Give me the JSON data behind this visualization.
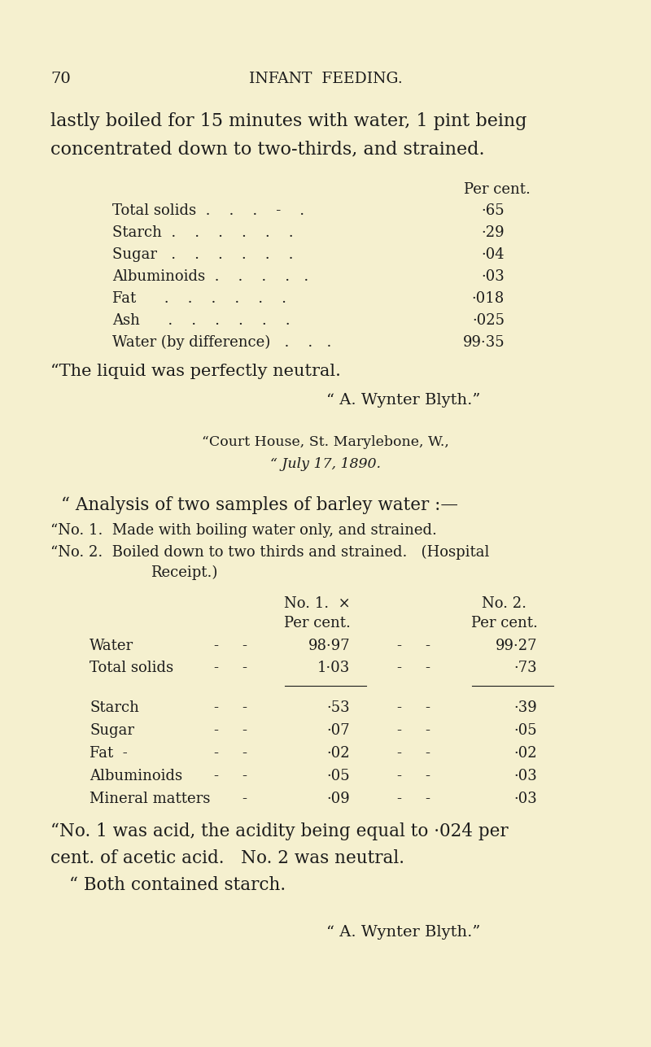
{
  "bg_color": "#f5f0cf",
  "text_color": "#1c1c1c",
  "page_number": "70",
  "header": "INFANT  FEEDING.",
  "intro_line1": "lastly boiled for 15 minutes with water, 1 pint being",
  "intro_line2": "concentrated down to two-thirds, and strained.",
  "per_cent_label": "Per cent.",
  "table1_rows": [
    [
      "Total solids  .    .    .    -    .",
      "·65"
    ],
    [
      "Starch  .    .    .    .    .    .",
      "·29"
    ],
    [
      "Sugar   .    .    .    .    .    .",
      "·04"
    ],
    [
      "Albuminoids  .    .    .    .   .",
      "·03"
    ],
    [
      "Fat      .    .    .    .    .    .",
      "·018"
    ],
    [
      "Ash      .    .    .    .    .    .",
      "·025"
    ],
    [
      "Water (by difference)   .    .   .",
      "99·35"
    ]
  ],
  "quote1": "“The liquid was perfectly neutral.",
  "attrib1": "“ A. Wynter Blyth.”",
  "court1": "“Court House, St. Marylebone, W.,",
  "court2": "“ July 17, 1890.",
  "analysis": "“ Analysis of two samples of barley water :—",
  "no1": "“No. 1.  Made with boiling water only, and strained.",
  "no2a": "“No. 2.  Boiled down to two thirds and strained.   (Hospital",
  "no2b": "Receipt.)",
  "col1h": "No. 1.  ×",
  "col2h": "No. 2.",
  "percents": "Per cent.",
  "table2a": [
    [
      "Water",
      "-",
      "-",
      "98·97",
      "-",
      "-",
      "99·27"
    ],
    [
      "Total solids",
      "-",
      "-",
      "1·03",
      "-",
      "-",
      "·73"
    ]
  ],
  "table2b": [
    [
      "Starch",
      "-",
      "-",
      "·53",
      "-",
      "-",
      "·39"
    ],
    [
      "Sugar",
      "-",
      "-",
      "·07",
      "-",
      "-",
      "·05"
    ],
    [
      "Fat  -",
      "-",
      "-",
      "·02",
      "-",
      "-",
      "·02"
    ],
    [
      "Albuminoids",
      "-",
      "-",
      "·05",
      "-",
      "-",
      "·03"
    ],
    [
      "Mineral matters",
      "-",
      "·09",
      "-",
      "-",
      "·03"
    ]
  ],
  "foot1": "“No. 1 was acid, the acidity being equal to ·024 per",
  "foot2": "cent. of acetic acid.   No. 2 was neutral.",
  "foot3": "“ Both contained starch.",
  "attrib2": "“ A. Wynter Blyth.”"
}
